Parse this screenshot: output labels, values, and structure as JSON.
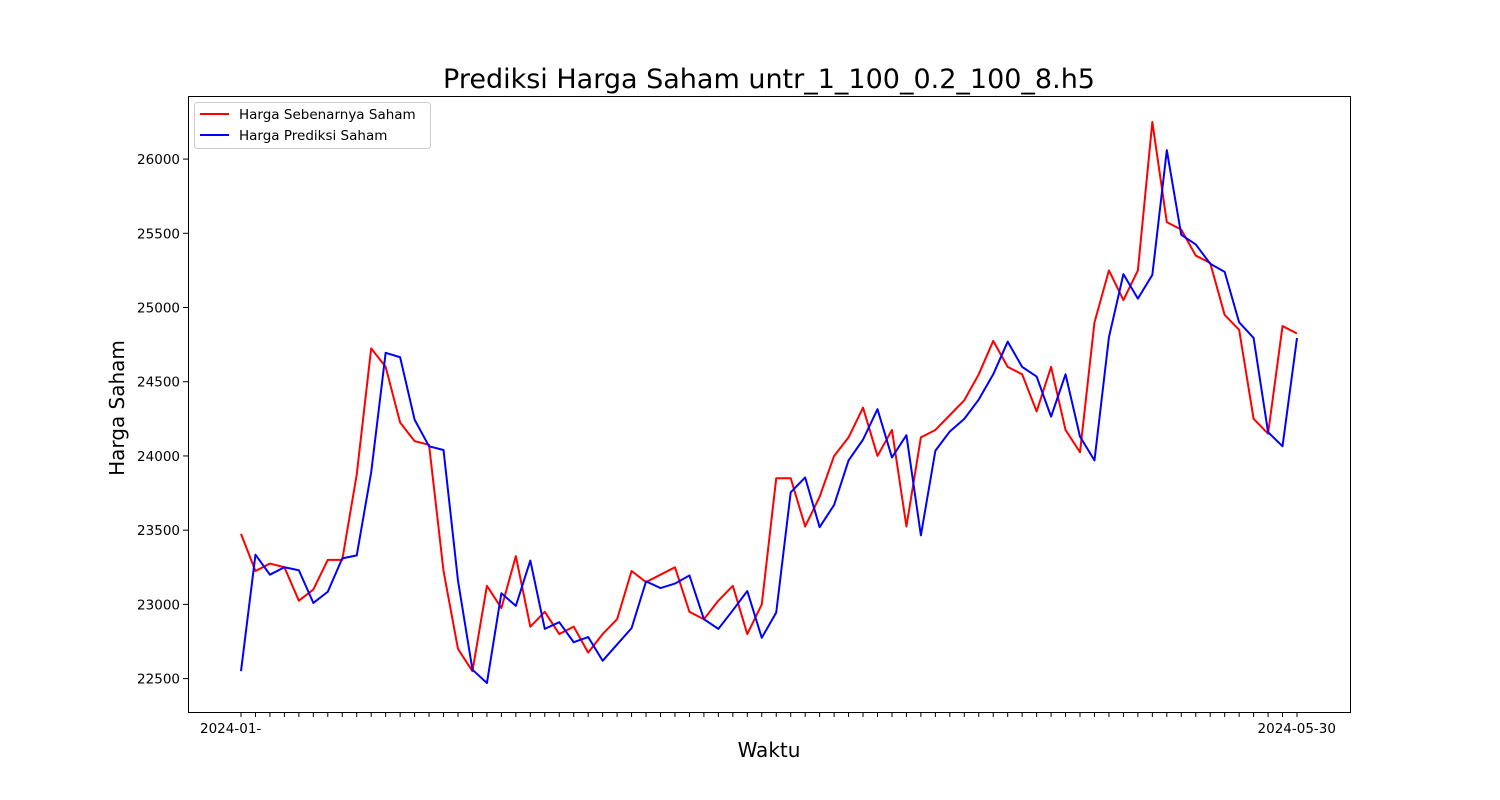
{
  "chart_data": {
    "type": "line",
    "title": "Prediksi Harga Saham untr_1_100_0.2_100_8.h5",
    "xlabel": "Waktu",
    "ylabel": "Harga Saham",
    "ylim": [
      22275,
      26425
    ],
    "yticks": [
      22500,
      23000,
      23500,
      24000,
      24500,
      25000,
      25500,
      26000
    ],
    "xtick_label_first": "2024-01-",
    "xtick_label_last": "2024-05-30",
    "grid": false,
    "legend": "upper left",
    "series": [
      {
        "name": "Harga Sebenarnya Saham",
        "color": "#ff0000",
        "values": [
          23475,
          23225,
          23275,
          23250,
          23025,
          23100,
          23300,
          23300,
          23875,
          24725,
          24600,
          24225,
          24100,
          24075,
          23225,
          22700,
          22550,
          23125,
          22975,
          23325,
          22850,
          22950,
          22800,
          22850,
          22675,
          22800,
          22900,
          23225,
          23150,
          23200,
          23250,
          22950,
          22900,
          23025,
          23125,
          22800,
          23000,
          23850,
          23850,
          23525,
          23725,
          24000,
          24125,
          24325,
          24000,
          24175,
          23525,
          24125,
          24175,
          24275,
          24375,
          24550,
          24775,
          24600,
          24550,
          24300,
          24600,
          24175,
          24025,
          24900,
          25250,
          25050,
          25250,
          26250,
          25575,
          25525,
          25350,
          25300,
          24950,
          24850,
          24250,
          24150,
          24875,
          24825
        ]
      },
      {
        "name": "Harga Prediksi Saham",
        "color": "#0000ff",
        "values": [
          22550,
          23335,
          23200,
          23250,
          23230,
          23010,
          23085,
          23310,
          23330,
          23890,
          24695,
          24665,
          24245,
          24065,
          24040,
          23160,
          22560,
          22470,
          23075,
          22990,
          23295,
          22835,
          22880,
          22745,
          22780,
          22620,
          22730,
          22840,
          23155,
          23110,
          23140,
          23195,
          22900,
          22835,
          22960,
          23090,
          22775,
          22945,
          23755,
          23855,
          23520,
          23670,
          23970,
          24110,
          24315,
          23990,
          24140,
          23465,
          24035,
          24165,
          24250,
          24380,
          24550,
          24770,
          24600,
          24535,
          24265,
          24550,
          24130,
          23970,
          24800,
          25225,
          25060,
          25220,
          26060,
          25490,
          25425,
          25295,
          25240,
          24900,
          24795,
          24160,
          24065,
          24795
        ]
      }
    ]
  }
}
